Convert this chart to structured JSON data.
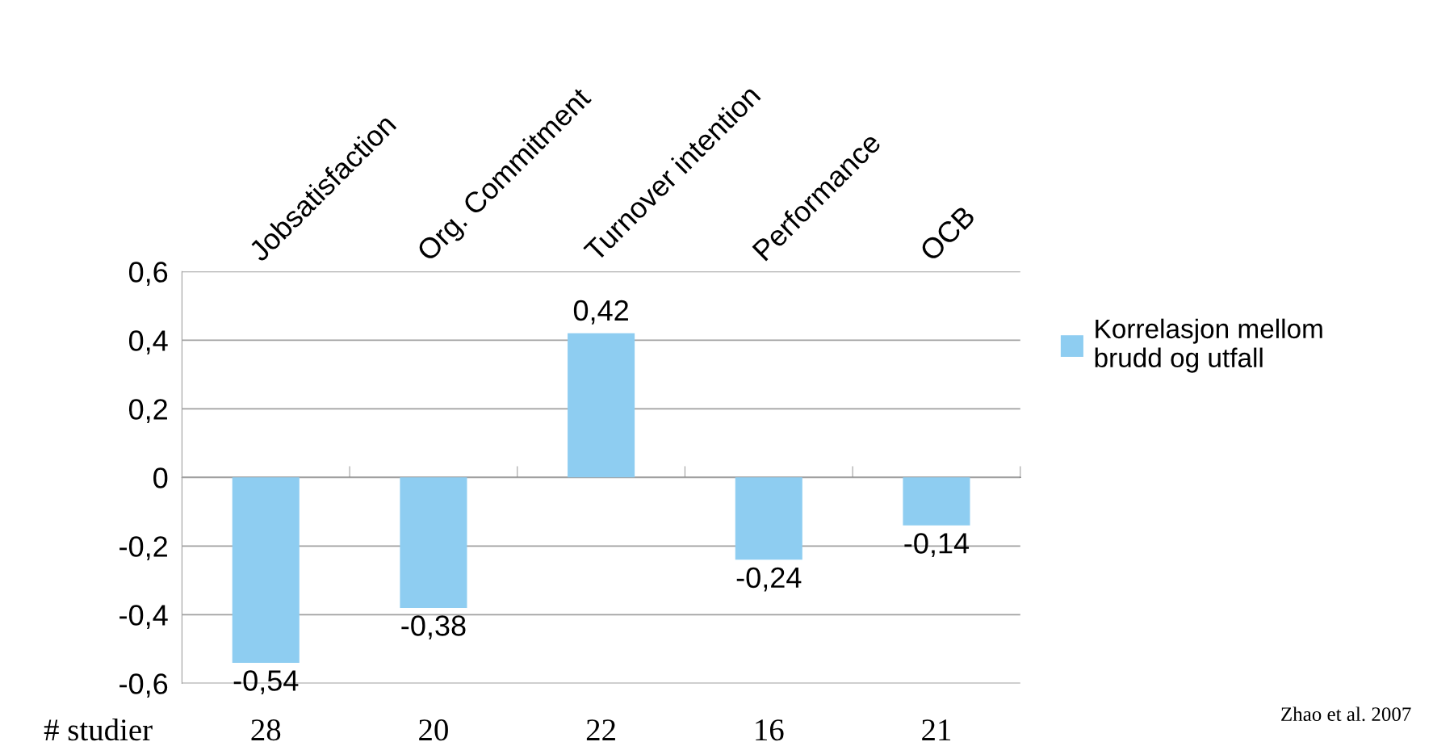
{
  "chart_data": {
    "type": "bar",
    "categories": [
      "Jobsatisfaction",
      "Org. Commitment",
      "Turnover intention",
      "Performance",
      "OCB"
    ],
    "series": [
      {
        "name": "Korrelasjon mellom\nbrudd og utfall",
        "color": "#8ecdf1",
        "values": [
          -0.54,
          -0.38,
          0.42,
          -0.24,
          -0.14
        ],
        "value_labels": [
          "-0,54",
          "-0,38",
          "0,42",
          "-0,24",
          "-0,14"
        ]
      }
    ],
    "ylim": [
      -0.6,
      0.6
    ],
    "yticks": [
      {
        "value": -0.6,
        "label": "-0,6"
      },
      {
        "value": -0.4,
        "label": "-0,4"
      },
      {
        "value": -0.2,
        "label": "-0,2"
      },
      0,
      {
        "value": 0.2,
        "label": "0,2"
      },
      {
        "value": 0.4,
        "label": "0,4"
      },
      {
        "value": 0.6,
        "label": "0,6"
      }
    ],
    "grid": "y",
    "legend": "right",
    "annotations": [
      "# studier",
      "28",
      "20",
      "22",
      "16",
      "21",
      "Zhao et al. 2007"
    ]
  }
}
